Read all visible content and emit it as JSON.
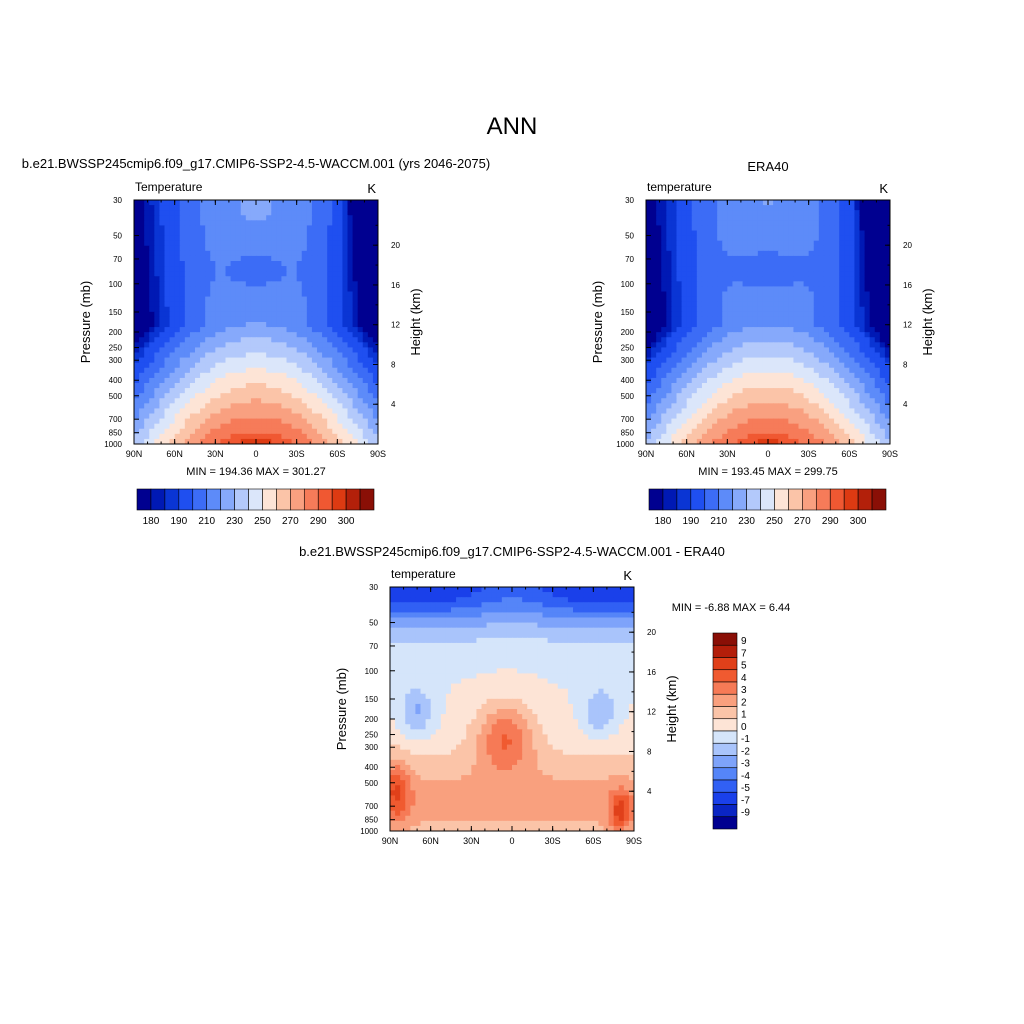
{
  "page": {
    "title": "ANN"
  },
  "palette": {
    "abs": [
      "#000090",
      "#0019b4",
      "#0a35d4",
      "#1f4ff0",
      "#3c6cf6",
      "#5d8bf9",
      "#86a9fb",
      "#b3c9fb",
      "#dbe6fa",
      "#fde4d6",
      "#fbc4a8",
      "#f9a080",
      "#f67b59",
      "#f05832",
      "#dd3a12",
      "#b3200a",
      "#8a0f06"
    ],
    "diff": [
      "#000090",
      "#0a25c4",
      "#1a40ea",
      "#3160f4",
      "#5585f8",
      "#7ea3fa",
      "#a9c4fb",
      "#d5e5fa",
      "#fde4d6",
      "#fbc4a8",
      "#f9a07e",
      "#f67a56",
      "#f05a30",
      "#e0401a",
      "#b31e0a",
      "#8a0f06"
    ]
  },
  "chart_data": [
    {
      "id": "model",
      "type": "contour",
      "title": "b.e21.BWSSP245cmip6.f09_g17.CMIP6-SSP2-4.5-WACCM.001 (yrs 2046-2075)",
      "left_label": "Temperature",
      "units": "K",
      "ylabel": "Pressure (mb)",
      "y2label": "Height (km)",
      "x_ticks": [
        "90N",
        "60N",
        "30N",
        "0",
        "30S",
        "60S",
        "90S"
      ],
      "y_ticks": [
        "30",
        "50",
        "70",
        "100",
        "150",
        "200",
        "250",
        "300",
        "400",
        "500",
        "700",
        "850",
        "1000"
      ],
      "y2_ticks": [
        "20",
        "16",
        "12",
        "8",
        "4"
      ],
      "stats": "MIN = 194.36  MAX = 301.27",
      "colorbar_labels": [
        "180",
        "190",
        "210",
        "230",
        "250",
        "270",
        "290",
        "300"
      ],
      "levels": [
        180,
        185,
        190,
        200,
        210,
        220,
        230,
        240,
        250,
        260,
        270,
        280,
        290,
        295,
        300,
        305
      ],
      "field": {
        "base": 265,
        "lapse": 90,
        "tropic_ridge": 12,
        "warm_pole": 8,
        "cold_core": -14,
        "offset": 0
      }
    },
    {
      "id": "obs",
      "type": "contour",
      "title": "ERA40",
      "left_label": "temperature",
      "units": "K",
      "ylabel": "Pressure (mb)",
      "y2label": "Height (km)",
      "x_ticks": [
        "90N",
        "60N",
        "30N",
        "0",
        "30S",
        "60S",
        "90S"
      ],
      "y_ticks": [
        "30",
        "50",
        "70",
        "100",
        "150",
        "200",
        "250",
        "300",
        "400",
        "500",
        "700",
        "850",
        "1000"
      ],
      "y2_ticks": [
        "20",
        "16",
        "12",
        "8",
        "4"
      ],
      "stats": "MIN = 193.45  MAX = 299.75",
      "colorbar_labels": [
        "180",
        "190",
        "210",
        "230",
        "250",
        "270",
        "290",
        "300"
      ],
      "levels": [
        180,
        185,
        190,
        200,
        210,
        220,
        230,
        240,
        250,
        260,
        270,
        280,
        290,
        295,
        300,
        305
      ],
      "field": {
        "base": 264,
        "lapse": 90,
        "tropic_ridge": 12,
        "warm_pole": 6,
        "cold_core": -14,
        "offset": -1
      }
    },
    {
      "id": "diff",
      "type": "contour",
      "title": "b.e21.BWSSP245cmip6.f09_g17.CMIP6-SSP2-4.5-WACCM.001 - ERA40",
      "left_label": "temperature",
      "units": "K",
      "ylabel": "Pressure (mb)",
      "y2label": "Height (km)",
      "x_ticks": [
        "90N",
        "60N",
        "30N",
        "0",
        "30S",
        "60S",
        "90S"
      ],
      "y_ticks": [
        "30",
        "50",
        "70",
        "100",
        "150",
        "200",
        "250",
        "300",
        "400",
        "500",
        "700",
        "850",
        "1000"
      ],
      "y2_ticks": [
        "20",
        "16",
        "12",
        "8",
        "4"
      ],
      "stats": "MIN =  -6.88  MAX =   6.44",
      "colorbar_labels": [
        "9",
        "7",
        "5",
        "4",
        "3",
        "2",
        "1",
        "0",
        "-1",
        "-2",
        "-3",
        "-4",
        "-5",
        "-7",
        "-9"
      ],
      "levels": [
        -9,
        -7,
        -5,
        -4,
        -3,
        -2,
        -1,
        0,
        1,
        2,
        3,
        4,
        5,
        7,
        9
      ]
    }
  ]
}
